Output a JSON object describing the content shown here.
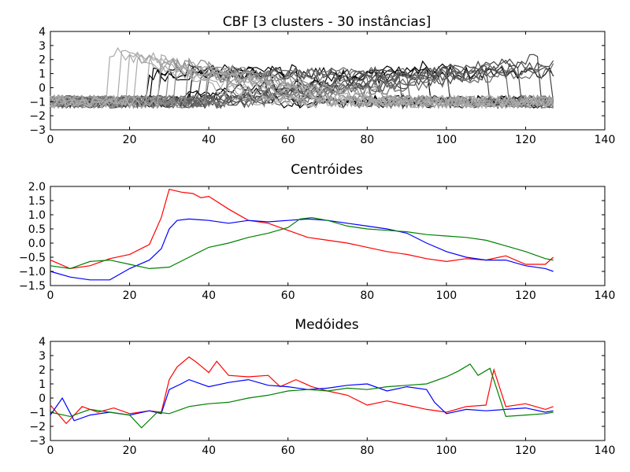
{
  "figure": {
    "background": "#ffffff"
  },
  "chart_data": [
    {
      "type": "line",
      "title": "CBF [3 clusters - 30 instâncias]",
      "xlabel": "",
      "ylabel": "",
      "xlim": [
        0,
        140
      ],
      "ylim": [
        -3,
        4
      ],
      "xticks": [
        0,
        20,
        40,
        60,
        80,
        100,
        120,
        140
      ],
      "yticks": [
        -3,
        -2,
        -1,
        0,
        1,
        2,
        3,
        4
      ],
      "grid": false,
      "legend": "none",
      "series": [
        {
          "color": "#000000",
          "profile": "cylinder",
          "start": 26,
          "end": 54,
          "level": 1.0
        },
        {
          "color": "#000000",
          "profile": "cylinder",
          "start": 25,
          "end": 59,
          "level": 0.9
        },
        {
          "color": "#000000",
          "profile": "cylinder",
          "start": 28,
          "end": 62,
          "level": 1.2
        },
        {
          "color": "#000000",
          "profile": "bell",
          "start": 30,
          "end": 95,
          "level": 1.5
        },
        {
          "color": "#000000",
          "profile": "bell",
          "start": 34,
          "end": 100,
          "level": 1.3
        },
        {
          "color": "#000000",
          "profile": "cylinder",
          "start": 36,
          "end": 127,
          "level": 1.1
        },
        {
          "color": "#444444",
          "profile": "bell",
          "start": 40,
          "end": 110,
          "level": 1.6
        },
        {
          "color": "#444444",
          "profile": "bell",
          "start": 44,
          "end": 118,
          "level": 1.8
        },
        {
          "color": "#444444",
          "profile": "bell",
          "start": 48,
          "end": 123,
          "level": 2.0
        },
        {
          "color": "#444444",
          "profile": "bell",
          "start": 52,
          "end": 126,
          "level": 1.5
        },
        {
          "color": "#444444",
          "profile": "cylinder",
          "start": 38,
          "end": 88,
          "level": 1.0
        },
        {
          "color": "#444444",
          "profile": "bell",
          "start": 56,
          "end": 127,
          "level": 1.7
        },
        {
          "color": "#666666",
          "profile": "cylinder",
          "start": 40,
          "end": 80,
          "level": 0.8
        },
        {
          "color": "#666666",
          "profile": "bell",
          "start": 42,
          "end": 100,
          "level": 1.2
        },
        {
          "color": "#666666",
          "profile": "cylinder",
          "start": 45,
          "end": 90,
          "level": 0.9
        },
        {
          "color": "#666666",
          "profile": "bell",
          "start": 50,
          "end": 115,
          "level": 1.4
        },
        {
          "color": "#666666",
          "profile": "cylinder",
          "start": 55,
          "end": 127,
          "level": 1.0
        },
        {
          "color": "#666666",
          "profile": "bell",
          "start": 60,
          "end": 127,
          "level": 1.3
        },
        {
          "color": "#888888",
          "profile": "funnel",
          "start": 30,
          "end": 65,
          "level": 1.8
        },
        {
          "color": "#888888",
          "profile": "funnel",
          "start": 32,
          "end": 70,
          "level": 1.6
        },
        {
          "color": "#888888",
          "profile": "funnel",
          "start": 35,
          "end": 75,
          "level": 2.0
        },
        {
          "color": "#888888",
          "profile": "funnel",
          "start": 40,
          "end": 80,
          "level": 1.5
        },
        {
          "color": "#888888",
          "profile": "funnel",
          "start": 45,
          "end": 90,
          "level": 1.3
        },
        {
          "color": "#888888",
          "profile": "funnel",
          "start": 28,
          "end": 60,
          "level": 1.7
        },
        {
          "color": "#aaaaaa",
          "profile": "funnel",
          "start": 15,
          "end": 70,
          "level": 2.5
        },
        {
          "color": "#aaaaaa",
          "profile": "funnel",
          "start": 18,
          "end": 55,
          "level": 2.4
        },
        {
          "color": "#aaaaaa",
          "profile": "funnel",
          "start": 20,
          "end": 60,
          "level": 2.3
        },
        {
          "color": "#aaaaaa",
          "profile": "funnel",
          "start": 22,
          "end": 50,
          "level": 2.2
        },
        {
          "color": "#aaaaaa",
          "profile": "funnel",
          "start": 25,
          "end": 75,
          "level": 2.1
        },
        {
          "color": "#aaaaaa",
          "profile": "funnel",
          "start": 28,
          "end": 85,
          "level": 1.9
        }
      ]
    },
    {
      "type": "line",
      "title": "Centróides",
      "xlabel": "",
      "ylabel": "",
      "xlim": [
        0,
        140
      ],
      "ylim": [
        -1.5,
        2.0
      ],
      "xticks": [
        0,
        20,
        40,
        60,
        80,
        100,
        120,
        140
      ],
      "yticks": [
        -1.5,
        -1.0,
        -0.5,
        0.0,
        0.5,
        1.0,
        1.5,
        2.0
      ],
      "ytick_labels": [
        "−1.5",
        "−1.0",
        "−0.5",
        "0.0",
        "0.5",
        "1.0",
        "1.5",
        "2.0"
      ],
      "grid": false,
      "legend": "none",
      "series": [
        {
          "color": "#ff0000",
          "points": [
            [
              0,
              -0.6
            ],
            [
              5,
              -0.9
            ],
            [
              10,
              -0.8
            ],
            [
              15,
              -0.55
            ],
            [
              20,
              -0.4
            ],
            [
              25,
              -0.05
            ],
            [
              28,
              0.9
            ],
            [
              30,
              1.9
            ],
            [
              33,
              1.8
            ],
            [
              36,
              1.75
            ],
            [
              38,
              1.6
            ],
            [
              40,
              1.65
            ],
            [
              45,
              1.2
            ],
            [
              50,
              0.8
            ],
            [
              55,
              0.7
            ],
            [
              60,
              0.45
            ],
            [
              65,
              0.2
            ],
            [
              70,
              0.1
            ],
            [
              75,
              0.0
            ],
            [
              80,
              -0.15
            ],
            [
              85,
              -0.3
            ],
            [
              90,
              -0.4
            ],
            [
              95,
              -0.55
            ],
            [
              100,
              -0.65
            ],
            [
              105,
              -0.55
            ],
            [
              110,
              -0.6
            ],
            [
              115,
              -0.45
            ],
            [
              120,
              -0.75
            ],
            [
              125,
              -0.75
            ],
            [
              127,
              -0.5
            ]
          ]
        },
        {
          "color": "#0000ff",
          "points": [
            [
              0,
              -1.0
            ],
            [
              5,
              -1.2
            ],
            [
              10,
              -1.3
            ],
            [
              15,
              -1.3
            ],
            [
              20,
              -0.9
            ],
            [
              25,
              -0.6
            ],
            [
              28,
              -0.2
            ],
            [
              30,
              0.5
            ],
            [
              32,
              0.8
            ],
            [
              35,
              0.85
            ],
            [
              40,
              0.8
            ],
            [
              45,
              0.7
            ],
            [
              50,
              0.8
            ],
            [
              55,
              0.75
            ],
            [
              60,
              0.8
            ],
            [
              65,
              0.85
            ],
            [
              70,
              0.8
            ],
            [
              75,
              0.7
            ],
            [
              80,
              0.6
            ],
            [
              85,
              0.5
            ],
            [
              90,
              0.35
            ],
            [
              95,
              0.0
            ],
            [
              100,
              -0.3
            ],
            [
              105,
              -0.5
            ],
            [
              110,
              -0.6
            ],
            [
              115,
              -0.6
            ],
            [
              120,
              -0.8
            ],
            [
              125,
              -0.9
            ],
            [
              127,
              -1.0
            ]
          ]
        },
        {
          "color": "#008000",
          "points": [
            [
              0,
              -0.8
            ],
            [
              5,
              -0.9
            ],
            [
              10,
              -0.65
            ],
            [
              15,
              -0.6
            ],
            [
              20,
              -0.75
            ],
            [
              25,
              -0.9
            ],
            [
              30,
              -0.85
            ],
            [
              35,
              -0.5
            ],
            [
              40,
              -0.15
            ],
            [
              45,
              0.0
            ],
            [
              50,
              0.2
            ],
            [
              55,
              0.35
            ],
            [
              60,
              0.55
            ],
            [
              63,
              0.85
            ],
            [
              66,
              0.9
            ],
            [
              70,
              0.8
            ],
            [
              75,
              0.6
            ],
            [
              80,
              0.5
            ],
            [
              85,
              0.45
            ],
            [
              90,
              0.4
            ],
            [
              95,
              0.3
            ],
            [
              100,
              0.25
            ],
            [
              105,
              0.2
            ],
            [
              110,
              0.1
            ],
            [
              115,
              -0.1
            ],
            [
              120,
              -0.3
            ],
            [
              125,
              -0.55
            ],
            [
              127,
              -0.6
            ]
          ]
        }
      ]
    },
    {
      "type": "line",
      "title": "Medóides",
      "xlabel": "",
      "ylabel": "",
      "xlim": [
        0,
        140
      ],
      "ylim": [
        -3,
        4
      ],
      "xticks": [
        0,
        20,
        40,
        60,
        80,
        100,
        120,
        140
      ],
      "yticks": [
        -3,
        -2,
        -1,
        0,
        1,
        2,
        3,
        4
      ],
      "grid": false,
      "legend": "none",
      "series": [
        {
          "color": "#ff0000",
          "points": [
            [
              0,
              -0.5
            ],
            [
              4,
              -1.8
            ],
            [
              8,
              -0.6
            ],
            [
              12,
              -1.0
            ],
            [
              16,
              -0.7
            ],
            [
              20,
              -1.1
            ],
            [
              25,
              -0.9
            ],
            [
              28,
              -1.0
            ],
            [
              30,
              1.3
            ],
            [
              32,
              2.2
            ],
            [
              35,
              2.9
            ],
            [
              37,
              2.5
            ],
            [
              40,
              1.8
            ],
            [
              42,
              2.6
            ],
            [
              45,
              1.6
            ],
            [
              50,
              1.5
            ],
            [
              55,
              1.6
            ],
            [
              58,
              0.8
            ],
            [
              62,
              1.3
            ],
            [
              66,
              0.8
            ],
            [
              70,
              0.5
            ],
            [
              75,
              0.2
            ],
            [
              80,
              -0.5
            ],
            [
              85,
              -0.2
            ],
            [
              90,
              -0.5
            ],
            [
              95,
              -0.8
            ],
            [
              100,
              -1.0
            ],
            [
              105,
              -0.6
            ],
            [
              110,
              -0.5
            ],
            [
              112,
              2.0
            ],
            [
              115,
              -0.6
            ],
            [
              120,
              -0.4
            ],
            [
              125,
              -0.8
            ],
            [
              127,
              -0.6
            ]
          ]
        },
        {
          "color": "#0000ff",
          "points": [
            [
              0,
              -1.2
            ],
            [
              3,
              0.0
            ],
            [
              6,
              -1.6
            ],
            [
              10,
              -1.2
            ],
            [
              15,
              -1.0
            ],
            [
              20,
              -1.2
            ],
            [
              25,
              -0.9
            ],
            [
              28,
              -1.1
            ],
            [
              30,
              0.6
            ],
            [
              33,
              1.0
            ],
            [
              35,
              1.3
            ],
            [
              40,
              0.8
            ],
            [
              45,
              1.1
            ],
            [
              50,
              1.3
            ],
            [
              55,
              0.9
            ],
            [
              60,
              0.8
            ],
            [
              65,
              0.6
            ],
            [
              70,
              0.7
            ],
            [
              75,
              0.9
            ],
            [
              80,
              1.0
            ],
            [
              85,
              0.5
            ],
            [
              90,
              0.8
            ],
            [
              95,
              0.6
            ],
            [
              97,
              -0.3
            ],
            [
              100,
              -1.1
            ],
            [
              105,
              -0.8
            ],
            [
              110,
              -0.9
            ],
            [
              115,
              -0.8
            ],
            [
              120,
              -0.7
            ],
            [
              125,
              -1.0
            ],
            [
              127,
              -0.9
            ]
          ]
        },
        {
          "color": "#008000",
          "points": [
            [
              0,
              -1.0
            ],
            [
              5,
              -1.3
            ],
            [
              10,
              -0.8
            ],
            [
              15,
              -1.0
            ],
            [
              20,
              -1.2
            ],
            [
              23,
              -2.1
            ],
            [
              27,
              -1.0
            ],
            [
              30,
              -1.1
            ],
            [
              35,
              -0.6
            ],
            [
              40,
              -0.4
            ],
            [
              45,
              -0.3
            ],
            [
              50,
              0.0
            ],
            [
              55,
              0.2
            ],
            [
              60,
              0.5
            ],
            [
              65,
              0.6
            ],
            [
              70,
              0.5
            ],
            [
              75,
              0.7
            ],
            [
              80,
              0.6
            ],
            [
              85,
              0.8
            ],
            [
              90,
              0.9
            ],
            [
              95,
              1.0
            ],
            [
              100,
              1.5
            ],
            [
              103,
              1.9
            ],
            [
              106,
              2.4
            ],
            [
              108,
              1.6
            ],
            [
              111,
              2.1
            ],
            [
              115,
              -1.3
            ],
            [
              120,
              -1.2
            ],
            [
              125,
              -1.1
            ],
            [
              127,
              -1.0
            ]
          ]
        }
      ]
    }
  ]
}
